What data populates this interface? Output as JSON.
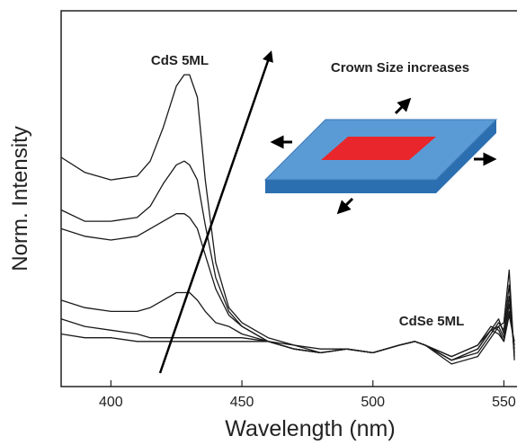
{
  "chart_data": {
    "type": "line",
    "xlabel": "Wavelength (nm)",
    "ylabel": "Norm. Intensity",
    "annotations": [
      "CdS 5ML",
      "Crown Size increases",
      "CdSe 5ML"
    ],
    "x": [
      381,
      390,
      400,
      410,
      415,
      420,
      425,
      428,
      430,
      433,
      436,
      440,
      445,
      450,
      460,
      470,
      480,
      490,
      500,
      510,
      516,
      520,
      530,
      540,
      545,
      548,
      550,
      552,
      554
    ],
    "series": [
      {
        "color": "#1a1a1a",
        "values": [
          0.61,
          0.57,
          0.55,
          0.56,
          0.6,
          0.69,
          0.8,
          0.83,
          0.83,
          0.77,
          0.55,
          0.33,
          0.21,
          0.17,
          0.13,
          0.11,
          0.09,
          0.1,
          0.09,
          0.11,
          0.12,
          0.11,
          0.06,
          0.08,
          0.13,
          0.16,
          0.17,
          0.31,
          0.07
        ]
      },
      {
        "color": "#1a1a1a",
        "values": [
          0.47,
          0.44,
          0.44,
          0.45,
          0.48,
          0.54,
          0.59,
          0.6,
          0.59,
          0.55,
          0.43,
          0.29,
          0.2,
          0.16,
          0.12,
          0.1,
          0.09,
          0.1,
          0.09,
          0.11,
          0.12,
          0.11,
          0.07,
          0.09,
          0.14,
          0.17,
          0.15,
          0.27,
          0.08
        ]
      },
      {
        "color": "#1a1a1a",
        "values": [
          0.42,
          0.4,
          0.39,
          0.4,
          0.42,
          0.44,
          0.46,
          0.46,
          0.45,
          0.42,
          0.35,
          0.26,
          0.19,
          0.16,
          0.12,
          0.1,
          0.09,
          0.1,
          0.09,
          0.11,
          0.12,
          0.11,
          0.07,
          0.1,
          0.15,
          0.18,
          0.14,
          0.24,
          0.09
        ]
      },
      {
        "color": "#1a1a1a",
        "values": [
          0.23,
          0.21,
          0.2,
          0.2,
          0.21,
          0.23,
          0.25,
          0.25,
          0.25,
          0.23,
          0.2,
          0.17,
          0.16,
          0.14,
          0.12,
          0.1,
          0.09,
          0.1,
          0.09,
          0.11,
          0.12,
          0.11,
          0.07,
          0.1,
          0.15,
          0.16,
          0.13,
          0.22,
          0.1
        ]
      },
      {
        "color": "#1a1a1a",
        "values": [
          0.18,
          0.16,
          0.15,
          0.14,
          0.13,
          0.13,
          0.13,
          0.13,
          0.13,
          0.13,
          0.13,
          0.13,
          0.13,
          0.13,
          0.12,
          0.1,
          0.09,
          0.1,
          0.09,
          0.11,
          0.12,
          0.11,
          0.08,
          0.11,
          0.16,
          0.15,
          0.12,
          0.2,
          0.11
        ]
      },
      {
        "color": "#1a1a1a",
        "values": [
          0.14,
          0.13,
          0.13,
          0.12,
          0.12,
          0.12,
          0.12,
          0.12,
          0.12,
          0.12,
          0.12,
          0.12,
          0.12,
          0.12,
          0.12,
          0.11,
          0.1,
          0.1,
          0.09,
          0.11,
          0.12,
          0.11,
          0.08,
          0.11,
          0.15,
          0.14,
          0.12,
          0.19,
          0.12
        ]
      }
    ],
    "xlim": [
      381,
      555
    ],
    "xticks": [
      400,
      450,
      500,
      550
    ],
    "ylim": [
      0,
      1
    ]
  }
}
